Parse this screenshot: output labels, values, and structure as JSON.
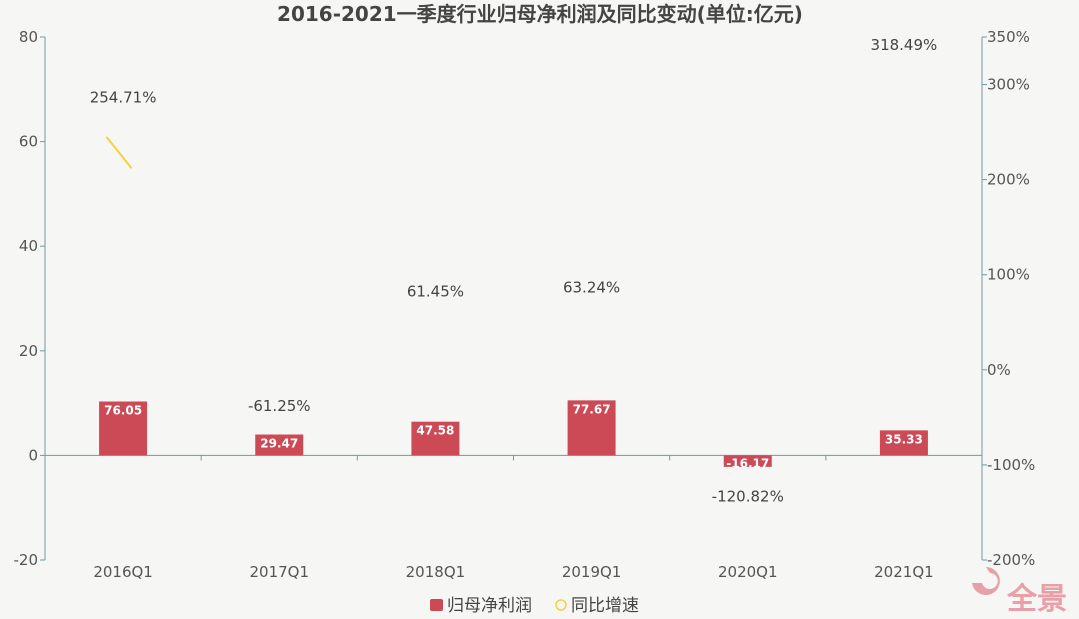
{
  "chart_data": {
    "type": "bar",
    "title": "2016-2021一季度行业归母净利润及同比变动(单位:亿元)",
    "categories": [
      "2016Q1",
      "2017Q1",
      "2018Q1",
      "2019Q1",
      "2020Q1",
      "2021Q1"
    ],
    "series": [
      {
        "name": "归母净利润",
        "type": "bar",
        "axis": "left",
        "values": [
          76.05,
          29.47,
          47.58,
          77.67,
          -16.17,
          35.33
        ],
        "labels": [
          "76.05",
          "29.47",
          "47.58",
          "77.67",
          "-16.17",
          "35.33"
        ],
        "color": "#cc4a55"
      },
      {
        "name": "同比增速",
        "type": "line",
        "axis": "right",
        "values": [
          254.71,
          -61.25,
          61.45,
          63.24,
          -120.82,
          318.49
        ],
        "labels": [
          "254.71%",
          "-61.25%",
          "61.45%",
          "63.24%",
          "-120.82%",
          "318.49%"
        ],
        "color": "#f5d142"
      }
    ],
    "y_left": {
      "range": [
        -20,
        80
      ],
      "ticks": [
        "80",
        "60",
        "40",
        "20",
        "0",
        "-20"
      ]
    },
    "y_right": {
      "range": [
        -200,
        350
      ],
      "ticks": [
        "350%",
        "300%",
        "200%",
        "100%",
        "0%",
        "-100%",
        "-200%"
      ]
    },
    "legend_position": "bottom-center",
    "grid": false
  },
  "watermark": {
    "text": "全景",
    "color": "#e8a0a8"
  }
}
